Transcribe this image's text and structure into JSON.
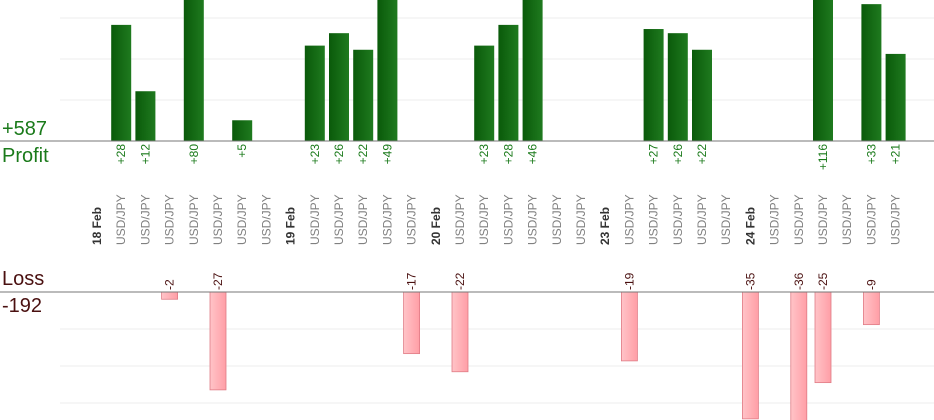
{
  "summary": {
    "profit_total": "+587",
    "profit_label": "Profit",
    "loss_label": "Loss",
    "loss_total": "-192"
  },
  "colors": {
    "profit_bar_dark": "#0a5a0a",
    "profit_bar_light": "#1f7a1f",
    "profit_text": "#1a7a1a",
    "loss_bar": "#ffb3b8",
    "loss_bar_edge": "#e07c86",
    "loss_text": "#4a1010",
    "category_text": "#808080",
    "date_text": "#333333"
  },
  "chart_data": {
    "type": "bar",
    "title": "",
    "categories": [
      "18 Feb",
      "USD/JPY",
      "USD/JPY",
      "USD/JPY",
      "USD/JPY",
      "USD/JPY",
      "USD/JPY",
      "USD/JPY",
      "19 Feb",
      "USD/JPY",
      "USD/JPY",
      "USD/JPY",
      "USD/JPY",
      "USD/JPY",
      "20 Feb",
      "USD/JPY",
      "USD/JPY",
      "USD/JPY",
      "USD/JPY",
      "USD/JPY",
      "USD/JPY",
      "23 Feb",
      "USD/JPY",
      "USD/JPY",
      "USD/JPY",
      "USD/JPY",
      "USD/JPY",
      "24 Feb",
      "USD/JPY",
      "USD/JPY",
      "USD/JPY",
      "USD/JPY",
      "USD/JPY",
      "USD/JPY"
    ],
    "date_category_indices": [
      0,
      8,
      14,
      21,
      27
    ],
    "series": [
      {
        "name": "Profit",
        "values": [
          null,
          28,
          12,
          null,
          80,
          null,
          5,
          null,
          null,
          23,
          26,
          22,
          49,
          null,
          null,
          null,
          23,
          28,
          46,
          null,
          null,
          null,
          null,
          27,
          26,
          22,
          null,
          null,
          null,
          null,
          116,
          null,
          33,
          21
        ],
        "labels": [
          null,
          "+28",
          "+12",
          null,
          "+80",
          null,
          "+5",
          null,
          null,
          "+23",
          "+26",
          "+22",
          "+49",
          null,
          null,
          null,
          "+23",
          "+28",
          "+46",
          null,
          null,
          null,
          null,
          "+27",
          "+26",
          "+22",
          null,
          null,
          null,
          null,
          "+116",
          null,
          "+33",
          "+21"
        ]
      },
      {
        "name": "Loss",
        "values": [
          null,
          null,
          null,
          -2,
          null,
          -27,
          null,
          null,
          null,
          null,
          null,
          null,
          null,
          -17,
          null,
          -22,
          null,
          null,
          null,
          null,
          null,
          null,
          -19,
          null,
          null,
          null,
          null,
          -35,
          null,
          -36,
          -25,
          null,
          -9,
          null
        ],
        "labels": [
          null,
          null,
          null,
          "-2",
          null,
          "-27",
          null,
          null,
          null,
          null,
          null,
          null,
          null,
          "-17",
          null,
          "-22",
          null,
          null,
          null,
          null,
          null,
          null,
          "-19",
          null,
          null,
          null,
          null,
          "-35",
          null,
          "-36",
          "-25",
          null,
          "-9",
          null
        ]
      }
    ],
    "profit_ylim": [
      0,
      34
    ],
    "loss_ylim": [
      -32,
      0
    ],
    "grid": true,
    "legend": "none"
  }
}
